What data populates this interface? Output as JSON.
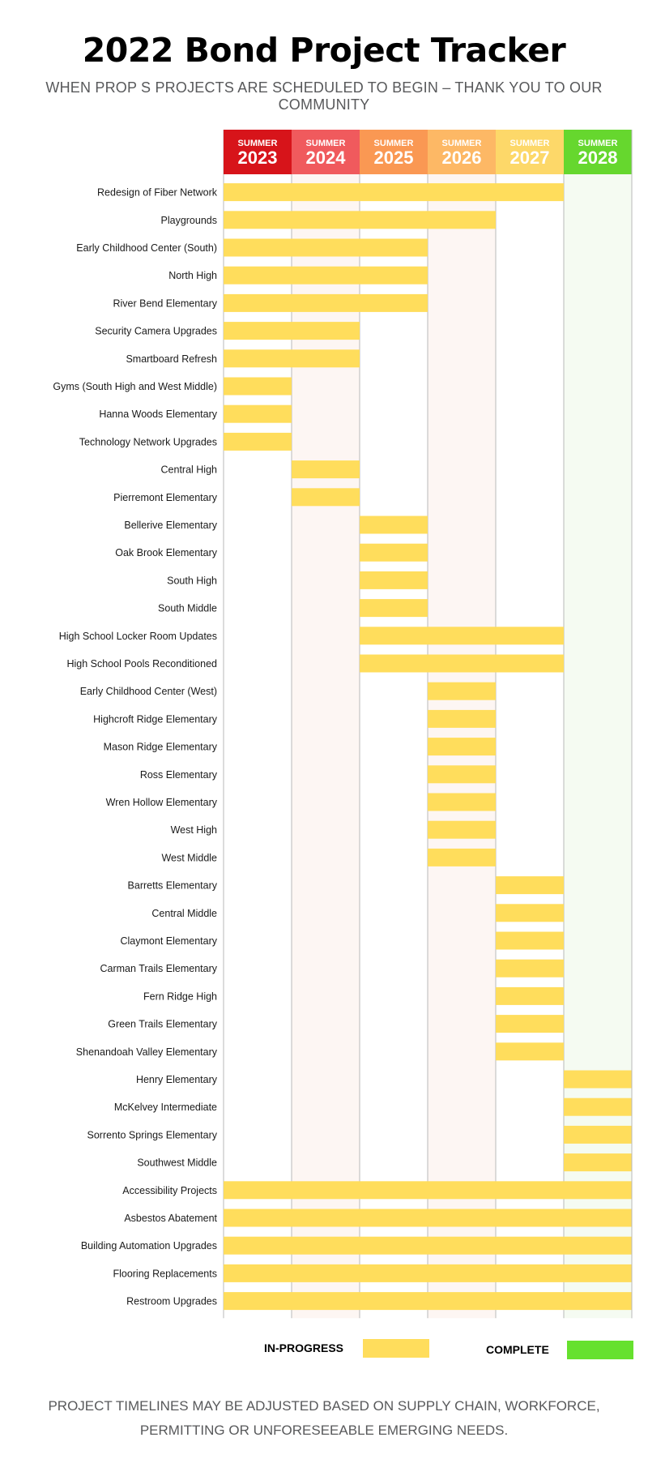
{
  "title": "2022 Bond Project Tracker",
  "subtitle": "WHEN PROP S PROJECTS ARE SCHEDULED TO BEGIN – THANK YOU TO OUR COMMUNITY",
  "legend": {
    "in_progress_label": "IN-PROGRESS",
    "complete_label": "COMPLETE"
  },
  "footnote": {
    "line1": "PROJECT TIMELINES MAY BE ADJUSTED BASED ON SUPPLY CHAIN, WORKFORCE,",
    "line2": "PERMITTING OR UNFORESEEABLE EMERGING NEEDS."
  },
  "colors": {
    "in_progress": "#ffdd5c",
    "complete": "#66e12e",
    "complete_column_tint": "#f5fbf2",
    "tinted_column": "#fdf6f3",
    "grid": "#b9b9b9"
  },
  "chart_data": {
    "type": "gantt",
    "columns": [
      {
        "top": "SUMMER",
        "year": "2023",
        "color": "#d7141a"
      },
      {
        "top": "SUMMER",
        "year": "2024",
        "color": "#f05a5d"
      },
      {
        "top": "SUMMER",
        "year": "2025",
        "color": "#fa9853"
      },
      {
        "top": "SUMMER",
        "year": "2026",
        "color": "#fdb865"
      },
      {
        "top": "SUMMER",
        "year": "2027",
        "color": "#fdd869"
      },
      {
        "top": "SUMMER",
        "year": "2028",
        "color": "#66d72e"
      }
    ],
    "status_of_2028_column": "COMPLETE",
    "projects": [
      {
        "name": "Redesign of Fiber Network",
        "start": "2023",
        "end": "2027"
      },
      {
        "name": "Playgrounds",
        "start": "2023",
        "end": "2026"
      },
      {
        "name": "Early Childhood Center (South)",
        "start": "2023",
        "end": "2025"
      },
      {
        "name": "North High",
        "start": "2023",
        "end": "2025"
      },
      {
        "name": "River Bend Elementary",
        "start": "2023",
        "end": "2025"
      },
      {
        "name": "Security Camera Upgrades",
        "start": "2023",
        "end": "2024"
      },
      {
        "name": "Smartboard Refresh",
        "start": "2023",
        "end": "2024"
      },
      {
        "name": "Gyms (South High and West Middle)",
        "start": "2023",
        "end": "2023"
      },
      {
        "name": "Hanna Woods Elementary",
        "start": "2023",
        "end": "2023"
      },
      {
        "name": "Technology Network Upgrades",
        "start": "2023",
        "end": "2023"
      },
      {
        "name": "Central High",
        "start": "2024",
        "end": "2024"
      },
      {
        "name": "Pierremont Elementary",
        "start": "2024",
        "end": "2024"
      },
      {
        "name": "Bellerive Elementary",
        "start": "2025",
        "end": "2025"
      },
      {
        "name": "Oak Brook Elementary",
        "start": "2025",
        "end": "2025"
      },
      {
        "name": "South High",
        "start": "2025",
        "end": "2025"
      },
      {
        "name": "South Middle",
        "start": "2025",
        "end": "2025"
      },
      {
        "name": "High School Locker Room Updates",
        "start": "2025",
        "end": "2027"
      },
      {
        "name": "High School Pools Reconditioned",
        "start": "2025",
        "end": "2027"
      },
      {
        "name": "Early Childhood Center (West)",
        "start": "2026",
        "end": "2026"
      },
      {
        "name": "Highcroft Ridge Elementary",
        "start": "2026",
        "end": "2026"
      },
      {
        "name": "Mason Ridge Elementary",
        "start": "2026",
        "end": "2026"
      },
      {
        "name": "Ross Elementary",
        "start": "2026",
        "end": "2026"
      },
      {
        "name": "Wren Hollow Elementary",
        "start": "2026",
        "end": "2026"
      },
      {
        "name": "West High",
        "start": "2026",
        "end": "2026"
      },
      {
        "name": "West Middle",
        "start": "2026",
        "end": "2026"
      },
      {
        "name": "Barretts Elementary",
        "start": "2027",
        "end": "2027"
      },
      {
        "name": "Central Middle",
        "start": "2027",
        "end": "2027"
      },
      {
        "name": "Claymont Elementary",
        "start": "2027",
        "end": "2027"
      },
      {
        "name": "Carman Trails Elementary",
        "start": "2027",
        "end": "2027"
      },
      {
        "name": "Fern Ridge High",
        "start": "2027",
        "end": "2027"
      },
      {
        "name": "Green Trails Elementary",
        "start": "2027",
        "end": "2027"
      },
      {
        "name": "Shenandoah Valley Elementary",
        "start": "2027",
        "end": "2027"
      },
      {
        "name": "Henry Elementary",
        "start": "2028",
        "end": "2028"
      },
      {
        "name": "McKelvey Intermediate",
        "start": "2028",
        "end": "2028"
      },
      {
        "name": "Sorrento Springs Elementary",
        "start": "2028",
        "end": "2028"
      },
      {
        "name": "Southwest Middle",
        "start": "2028",
        "end": "2028"
      },
      {
        "name": "Accessibility Projects",
        "start": "2023",
        "end": "2028"
      },
      {
        "name": "Asbestos Abatement",
        "start": "2023",
        "end": "2028"
      },
      {
        "name": "Building Automation Upgrades",
        "start": "2023",
        "end": "2028"
      },
      {
        "name": "Flooring Replacements",
        "start": "2023",
        "end": "2028"
      },
      {
        "name": "Restroom Upgrades",
        "start": "2023",
        "end": "2028"
      }
    ]
  }
}
